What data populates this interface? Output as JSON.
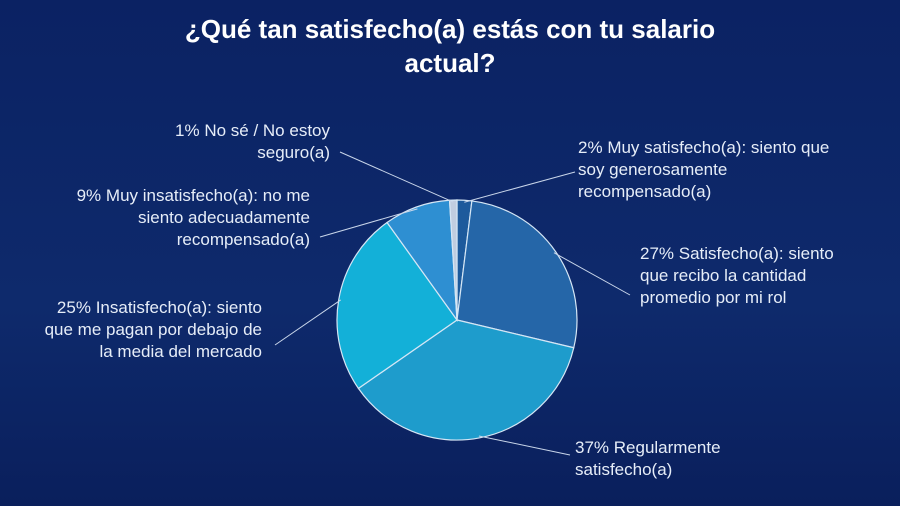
{
  "chart_data": {
    "type": "pie",
    "title": "¿Qué tan satisfecho(a) estás con tu salario actual?",
    "categories": [
      "Muy satisfecho(a): siento que soy generosamente recompensado(a)",
      "Satisfecho(a): siento que recibo la cantidad promedio por mi rol",
      "Regularmente satisfecho(a)",
      "Insatisfecho(a): siento que me pagan por debajo de la media del mercado",
      "Muy insatisfecho(a): no me siento adecuadamente recompensado(a)",
      "No sé / No estoy seguro(a)"
    ],
    "values": [
      2,
      27,
      37,
      25,
      9,
      1
    ],
    "value_labels": [
      "2%",
      "27%",
      "37%",
      "25%",
      "9%",
      "1%"
    ],
    "colors": [
      "#1d5a9c",
      "#2566a8",
      "#1e9ccc",
      "#13b0d8",
      "#2e8fd2",
      "#c0cde0"
    ]
  }
}
